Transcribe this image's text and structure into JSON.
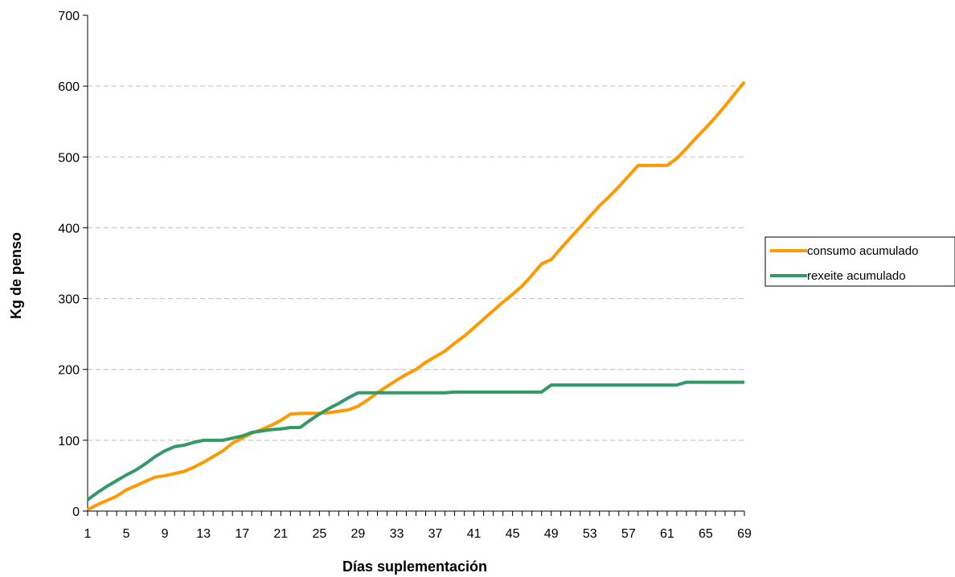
{
  "chart_data": {
    "type": "line",
    "title": "",
    "xlabel": "Días suplementación",
    "ylabel": "Kg de penso",
    "ylim": [
      0,
      700
    ],
    "yticks": [
      0,
      100,
      200,
      300,
      400,
      500,
      600,
      700
    ],
    "x": [
      1,
      2,
      3,
      4,
      5,
      6,
      7,
      8,
      9,
      10,
      11,
      12,
      13,
      14,
      15,
      16,
      17,
      18,
      19,
      20,
      21,
      22,
      23,
      24,
      25,
      26,
      27,
      28,
      29,
      30,
      31,
      32,
      33,
      34,
      35,
      36,
      37,
      38,
      39,
      40,
      41,
      42,
      43,
      44,
      45,
      46,
      47,
      48,
      49,
      50,
      51,
      52,
      53,
      54,
      55,
      56,
      57,
      58,
      59,
      60,
      61,
      62,
      63,
      64,
      65,
      66,
      67,
      68,
      69
    ],
    "xtick_labels": [
      "1",
      "5",
      "9",
      "13",
      "17",
      "21",
      "25",
      "29",
      "33",
      "37",
      "41",
      "45",
      "49",
      "53",
      "57",
      "61",
      "65",
      "69"
    ],
    "grid": "horizontal dashed",
    "legend_position": "right",
    "series": [
      {
        "name": "consumo acumulado",
        "color": "#FF9900",
        "values": [
          2,
          9,
          15,
          21,
          30,
          36,
          42,
          48,
          50,
          53,
          56,
          62,
          69,
          77,
          85,
          96,
          103,
          110,
          115,
          121,
          128,
          137,
          138,
          138,
          138,
          139,
          141,
          143,
          148,
          157,
          167,
          176,
          185,
          193,
          200,
          210,
          218,
          226,
          237,
          247,
          259,
          271,
          283,
          295,
          306,
          318,
          333,
          349,
          355,
          371,
          386,
          401,
          416,
          431,
          444,
          458,
          473,
          488,
          488,
          488,
          488,
          498,
          512,
          527,
          541,
          556,
          572,
          589,
          606
        ]
      },
      {
        "name": "rexeite acumulado",
        "color": "#339966",
        "values": [
          16,
          26,
          35,
          43,
          51,
          58,
          67,
          77,
          85,
          91,
          93,
          97,
          100,
          100,
          100,
          103,
          106,
          111,
          113,
          115,
          116,
          118,
          118,
          128,
          137,
          145,
          152,
          160,
          167,
          167,
          167,
          167,
          167,
          167,
          167,
          167,
          167,
          167,
          168,
          168,
          168,
          168,
          168,
          168,
          168,
          168,
          168,
          168,
          178,
          178,
          178,
          178,
          178,
          178,
          178,
          178,
          178,
          178,
          178,
          178,
          178,
          178,
          182,
          182,
          182,
          182,
          182,
          182,
          182
        ]
      }
    ]
  }
}
